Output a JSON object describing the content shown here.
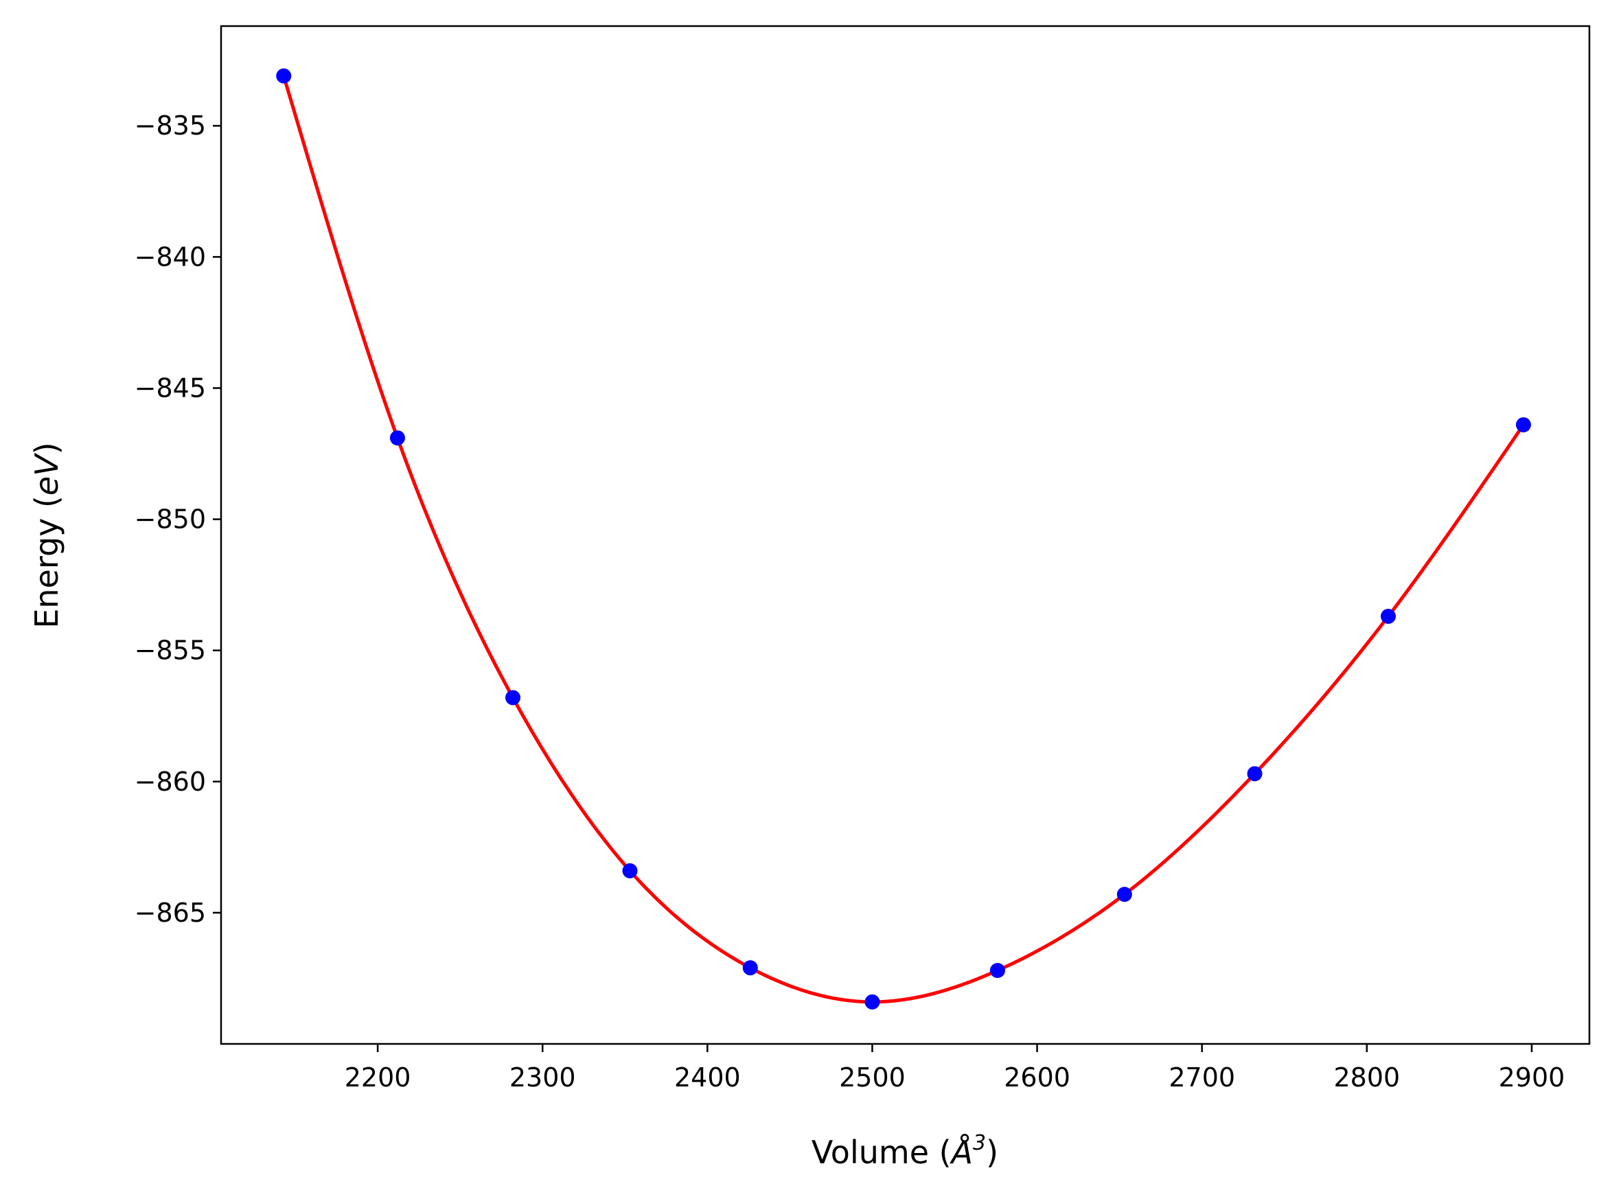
{
  "chart_data": {
    "type": "scatter",
    "title": "",
    "xlabel": {
      "main": "Volume (",
      "symbol": "Å",
      "sup": "3",
      "close": ")"
    },
    "ylabel": {
      "main": "Energy (",
      "unit": "eV",
      "close": ")"
    },
    "xlim": [
      2105,
      2935
    ],
    "ylim": [
      -870,
      -831.2
    ],
    "xticks": [
      2200,
      2300,
      2400,
      2500,
      2600,
      2700,
      2800,
      2900
    ],
    "xtick_labels": [
      "2200",
      "2300",
      "2400",
      "2500",
      "2600",
      "2700",
      "2800",
      "2900"
    ],
    "yticks": [
      -835,
      -840,
      -845,
      -850,
      -855,
      -860,
      -865
    ],
    "ytick_labels": [
      "−835",
      "−840",
      "−845",
      "−850",
      "−855",
      "−860",
      "−865"
    ],
    "grid": false,
    "legend": "none",
    "series": [
      {
        "kind": "points",
        "color": "#0000ff",
        "x": [
          2143,
          2212,
          2282,
          2353,
          2426,
          2500,
          2576,
          2653,
          2732,
          2813,
          2895
        ],
        "y": [
          -833.1,
          -846.9,
          -856.8,
          -863.4,
          -867.1,
          -868.4,
          -867.2,
          -864.3,
          -859.7,
          -853.7,
          -846.4
        ]
      },
      {
        "kind": "fit",
        "color": "#ff0000"
      }
    ]
  }
}
